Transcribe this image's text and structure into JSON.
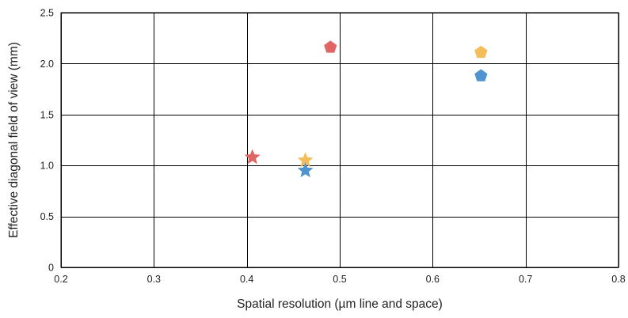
{
  "chart_data": {
    "type": "scatter",
    "title": "",
    "xlabel": "Spatial resolution (µm line and space)",
    "ylabel": "Effective diagonal field of view (mm)",
    "xlim": [
      0.2,
      0.8
    ],
    "ylim": [
      0,
      2.5
    ],
    "x_ticks": [
      0.2,
      0.3,
      0.4,
      0.5,
      0.6,
      0.7,
      0.8
    ],
    "y_ticks": [
      0,
      0.5,
      1.0,
      1.5,
      2.0,
      2.5
    ],
    "x_tick_labels": [
      "0.2",
      "0.3",
      "0.4",
      "0.5",
      "0.6",
      "0.7",
      "0.8"
    ],
    "y_tick_labels": [
      "0",
      "0.5",
      "1.0",
      "1.5",
      "2.0",
      "2.5"
    ],
    "grid": true,
    "legend": "none",
    "points": [
      {
        "x": 0.49,
        "y": 2.16,
        "marker": "pentagon",
        "color": "#e06666"
      },
      {
        "x": 0.652,
        "y": 2.11,
        "marker": "pentagon",
        "color": "#f4bd5a"
      },
      {
        "x": 0.652,
        "y": 1.88,
        "marker": "pentagon",
        "color": "#4f93cf"
      },
      {
        "x": 0.406,
        "y": 1.08,
        "marker": "star",
        "color": "#e06666"
      },
      {
        "x": 0.463,
        "y": 1.05,
        "marker": "star",
        "color": "#f4bd5a"
      },
      {
        "x": 0.463,
        "y": 0.95,
        "marker": "star",
        "color": "#4f93cf"
      }
    ]
  }
}
